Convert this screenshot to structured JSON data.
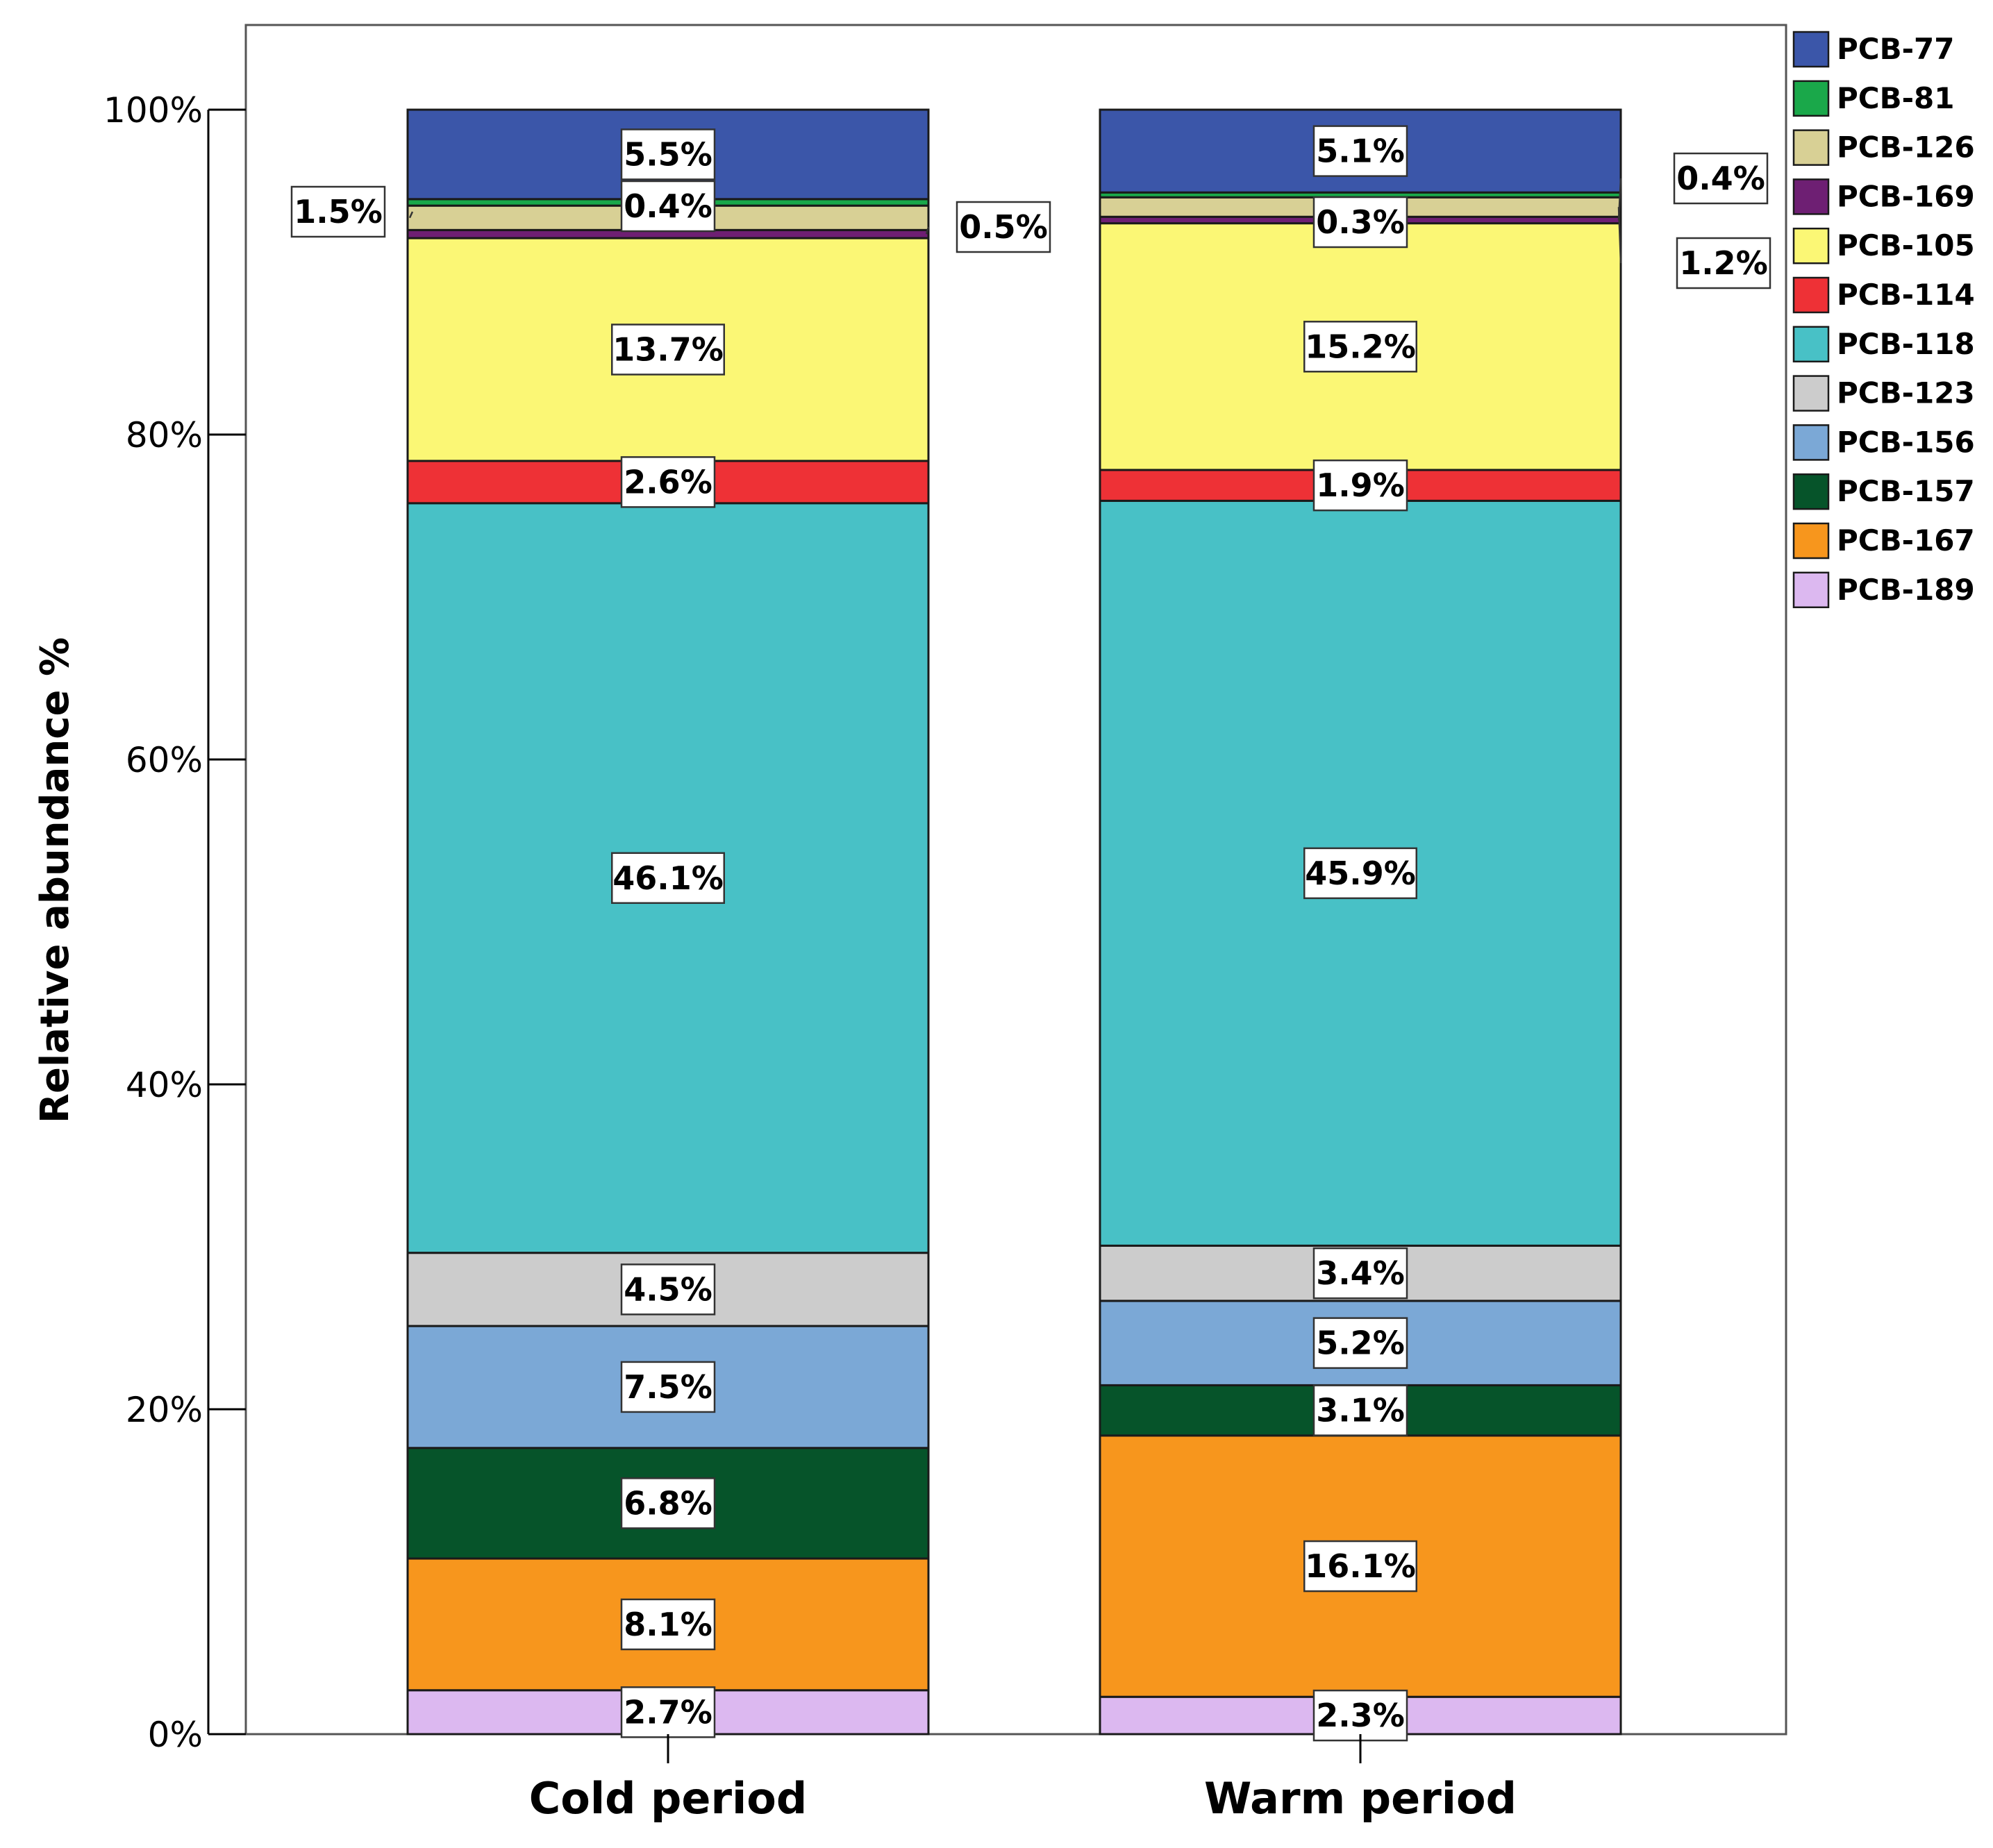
{
  "chart_data": {
    "type": "bar",
    "stacked": true,
    "normalized": true,
    "ylabel": "Relative abundance %",
    "xlabel": "",
    "ylim": [
      0,
      100
    ],
    "yticks": [
      "0%",
      "20%",
      "40%",
      "60%",
      "80%",
      "100%"
    ],
    "categories": [
      "Cold period",
      "Warm period"
    ],
    "legend_position": "right-top",
    "series": [
      {
        "name": "PCB-189",
        "color": "#dcb8f0",
        "values": [
          2.7,
          2.3
        ],
        "labels": [
          "2.7%",
          "2.3%"
        ]
      },
      {
        "name": "PCB-167",
        "color": "#f7961d",
        "values": [
          8.1,
          16.1
        ],
        "labels": [
          "8.1%",
          "16.1%"
        ]
      },
      {
        "name": "PCB-157",
        "color": "#06542a",
        "values": [
          6.8,
          3.1
        ],
        "labels": [
          "6.8%",
          "3.1%"
        ]
      },
      {
        "name": "PCB-156",
        "color": "#7ba8d6",
        "values": [
          7.5,
          5.2
        ],
        "labels": [
          "7.5%",
          "5.2%"
        ]
      },
      {
        "name": "PCB-123",
        "color": "#cccccc",
        "values": [
          4.5,
          3.4
        ],
        "labels": [
          "4.5%",
          "3.4%"
        ]
      },
      {
        "name": "PCB-118",
        "color": "#48c1c6",
        "values": [
          46.1,
          45.9
        ],
        "labels": [
          "46.1%",
          "45.9%"
        ]
      },
      {
        "name": "PCB-114",
        "color": "#ee3136",
        "values": [
          2.6,
          1.9
        ],
        "labels": [
          "2.6%",
          "1.9%"
        ]
      },
      {
        "name": "PCB-105",
        "color": "#fbf775",
        "values": [
          13.7,
          15.2
        ],
        "labels": [
          "13.7%",
          "15.2%"
        ]
      },
      {
        "name": "PCB-169",
        "color": "#6e1f73",
        "values": [
          0.5,
          0.4
        ],
        "labels": [
          "0.5%",
          "0.4%"
        ]
      },
      {
        "name": "PCB-126",
        "color": "#d8d095",
        "values": [
          1.5,
          1.2
        ],
        "labels": [
          "1.5%",
          "1.2%"
        ]
      },
      {
        "name": "PCB-81",
        "color": "#1aa84a",
        "values": [
          0.4,
          0.3
        ],
        "labels": [
          "0.4%",
          "0.3%"
        ]
      },
      {
        "name": "PCB-77",
        "color": "#3b56a9",
        "values": [
          5.5,
          5.1
        ],
        "labels": [
          "5.5%",
          "5.1%"
        ]
      }
    ],
    "legend_order": [
      "PCB-77",
      "PCB-81",
      "PCB-126",
      "PCB-169",
      "PCB-105",
      "PCB-114",
      "PCB-118",
      "PCB-123",
      "PCB-156",
      "PCB-157",
      "PCB-167",
      "PCB-189"
    ]
  }
}
